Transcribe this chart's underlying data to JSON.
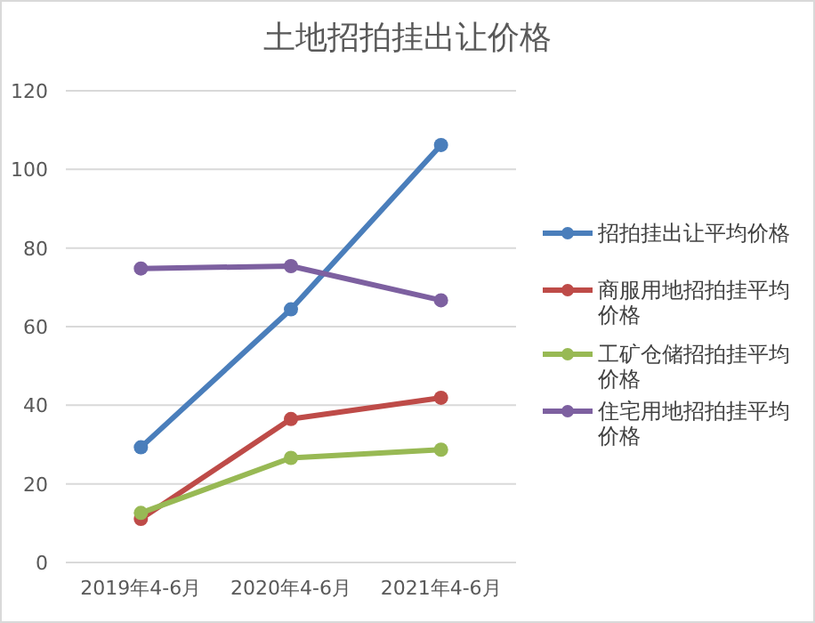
{
  "chart_data": {
    "type": "line",
    "title": "土地招拍挂出让价格",
    "categories": [
      "2019年4-6月",
      "2020年4-6月",
      "2021年4-6月"
    ],
    "series": [
      {
        "name": "招拍挂出让平均价格",
        "color": "#4a7ebb",
        "values": [
          29.3,
          64.4,
          106.2
        ]
      },
      {
        "name": "商服用地招拍挂平均价格",
        "color": "#be4b48",
        "values": [
          11.1,
          36.5,
          41.9
        ]
      },
      {
        "name": "工矿仓储招拍挂平均价格",
        "color": "#98b954",
        "values": [
          12.6,
          26.6,
          28.7
        ]
      },
      {
        "name": "住宅用地招拍挂平均价格",
        "color": "#7d60a0",
        "values": [
          74.8,
          75.4,
          66.7
        ]
      }
    ],
    "ylim": [
      0,
      120
    ],
    "yticks": [
      0,
      20,
      40,
      60,
      80,
      100,
      120
    ],
    "grid": "y",
    "legend": "right",
    "marker": "circle",
    "line_style": "solid"
  }
}
